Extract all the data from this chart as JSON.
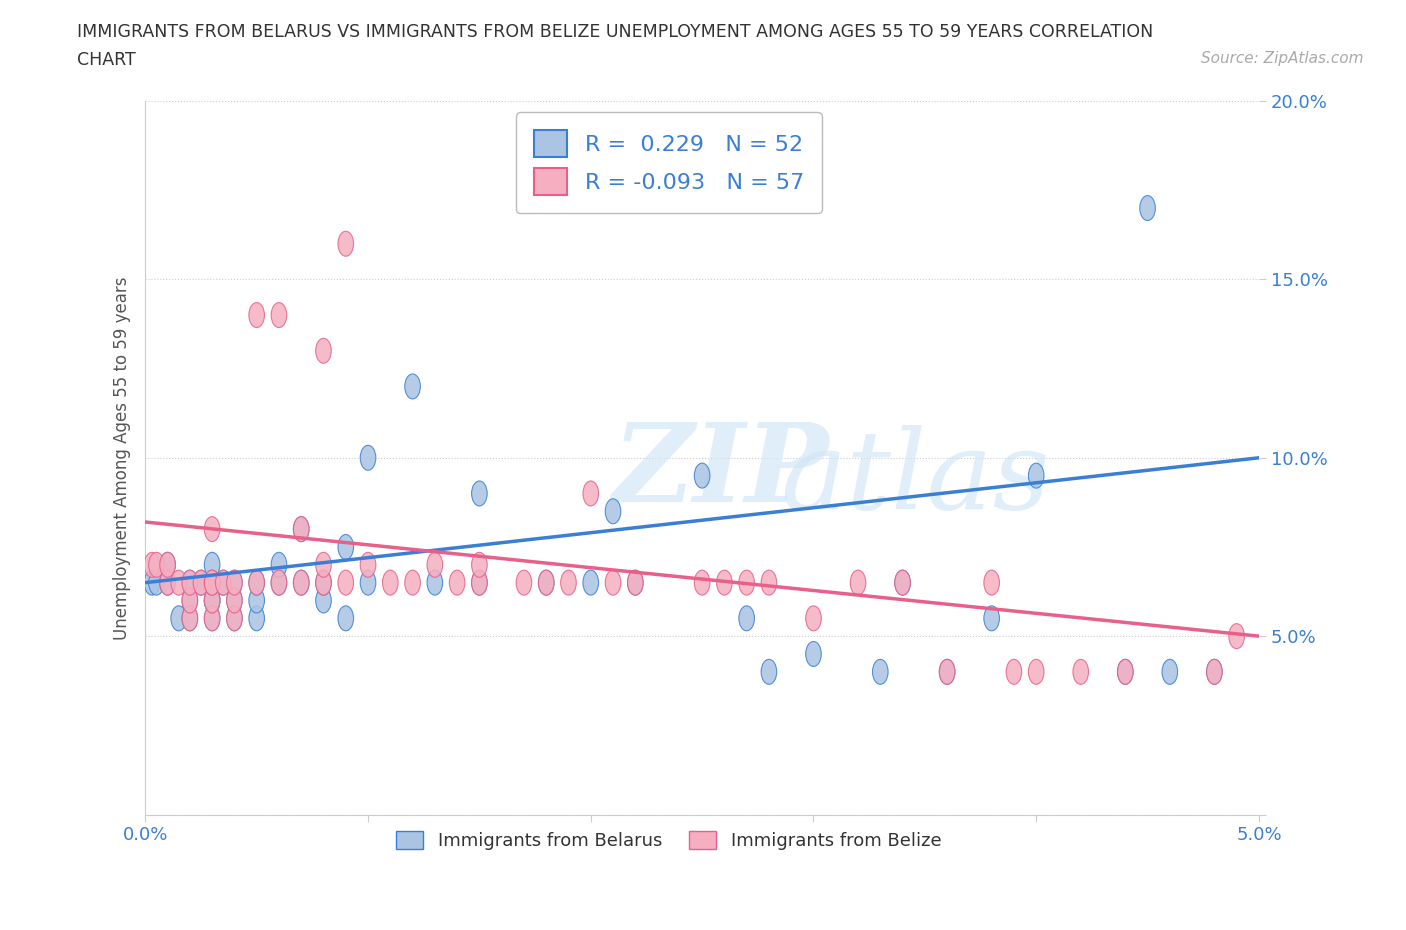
{
  "title_line1": "IMMIGRANTS FROM BELARUS VS IMMIGRANTS FROM BELIZE UNEMPLOYMENT AMONG AGES 55 TO 59 YEARS CORRELATION",
  "title_line2": "CHART",
  "source_text": "Source: ZipAtlas.com",
  "ylabel": "Unemployment Among Ages 55 to 59 years",
  "xlim": [
    0.0,
    0.05
  ],
  "ylim": [
    0.0,
    0.2
  ],
  "xticks": [
    0.0,
    0.01,
    0.02,
    0.03,
    0.04,
    0.05
  ],
  "xticklabels": [
    "0.0%",
    "",
    "",
    "",
    "",
    "5.0%"
  ],
  "yticks": [
    0.0,
    0.05,
    0.1,
    0.15,
    0.2
  ],
  "yticklabels": [
    "",
    "5.0%",
    "10.0%",
    "15.0%",
    "20.0%"
  ],
  "legend_R_belarus": "0.229",
  "legend_N_belarus": "52",
  "legend_R_belize": "-0.093",
  "legend_N_belize": "57",
  "color_belarus": "#aac4e2",
  "color_belize": "#f5afc0",
  "color_belarus_line": "#3a7fd5",
  "color_belize_line": "#e8608a",
  "belarus_scatter_x": [
    0.0003,
    0.0005,
    0.001,
    0.001,
    0.0015,
    0.002,
    0.002,
    0.002,
    0.0025,
    0.003,
    0.003,
    0.003,
    0.003,
    0.003,
    0.0035,
    0.004,
    0.004,
    0.004,
    0.005,
    0.005,
    0.005,
    0.006,
    0.006,
    0.007,
    0.007,
    0.008,
    0.008,
    0.009,
    0.009,
    0.01,
    0.01,
    0.012,
    0.013,
    0.015,
    0.015,
    0.018,
    0.02,
    0.021,
    0.022,
    0.025,
    0.027,
    0.028,
    0.03,
    0.033,
    0.034,
    0.036,
    0.038,
    0.04,
    0.044,
    0.045,
    0.046,
    0.048
  ],
  "belarus_scatter_y": [
    0.065,
    0.065,
    0.065,
    0.07,
    0.055,
    0.055,
    0.06,
    0.065,
    0.065,
    0.055,
    0.06,
    0.06,
    0.065,
    0.07,
    0.065,
    0.055,
    0.06,
    0.065,
    0.055,
    0.06,
    0.065,
    0.065,
    0.07,
    0.065,
    0.08,
    0.06,
    0.065,
    0.055,
    0.075,
    0.065,
    0.1,
    0.12,
    0.065,
    0.065,
    0.09,
    0.065,
    0.065,
    0.085,
    0.065,
    0.095,
    0.055,
    0.04,
    0.045,
    0.04,
    0.065,
    0.04,
    0.055,
    0.095,
    0.04,
    0.17,
    0.04,
    0.04
  ],
  "belize_scatter_x": [
    0.0003,
    0.0005,
    0.001,
    0.001,
    0.0015,
    0.002,
    0.002,
    0.002,
    0.0025,
    0.003,
    0.003,
    0.003,
    0.003,
    0.003,
    0.0035,
    0.004,
    0.004,
    0.004,
    0.005,
    0.005,
    0.006,
    0.006,
    0.007,
    0.007,
    0.008,
    0.008,
    0.008,
    0.009,
    0.009,
    0.01,
    0.011,
    0.012,
    0.013,
    0.014,
    0.015,
    0.015,
    0.017,
    0.018,
    0.019,
    0.02,
    0.021,
    0.022,
    0.025,
    0.026,
    0.027,
    0.028,
    0.03,
    0.032,
    0.034,
    0.036,
    0.038,
    0.039,
    0.04,
    0.042,
    0.044,
    0.048,
    0.049
  ],
  "belize_scatter_y": [
    0.07,
    0.07,
    0.065,
    0.07,
    0.065,
    0.055,
    0.06,
    0.065,
    0.065,
    0.055,
    0.06,
    0.065,
    0.065,
    0.08,
    0.065,
    0.055,
    0.06,
    0.065,
    0.065,
    0.14,
    0.065,
    0.14,
    0.065,
    0.08,
    0.065,
    0.07,
    0.13,
    0.065,
    0.16,
    0.07,
    0.065,
    0.065,
    0.07,
    0.065,
    0.065,
    0.07,
    0.065,
    0.065,
    0.065,
    0.09,
    0.065,
    0.065,
    0.065,
    0.065,
    0.065,
    0.065,
    0.055,
    0.065,
    0.065,
    0.04,
    0.065,
    0.04,
    0.04,
    0.04,
    0.04,
    0.04,
    0.05
  ],
  "belarus_line_x": [
    0.0,
    0.05
  ],
  "belarus_line_y": [
    0.065,
    0.1
  ],
  "belize_line_x": [
    0.0,
    0.05
  ],
  "belize_line_y": [
    0.082,
    0.05
  ]
}
